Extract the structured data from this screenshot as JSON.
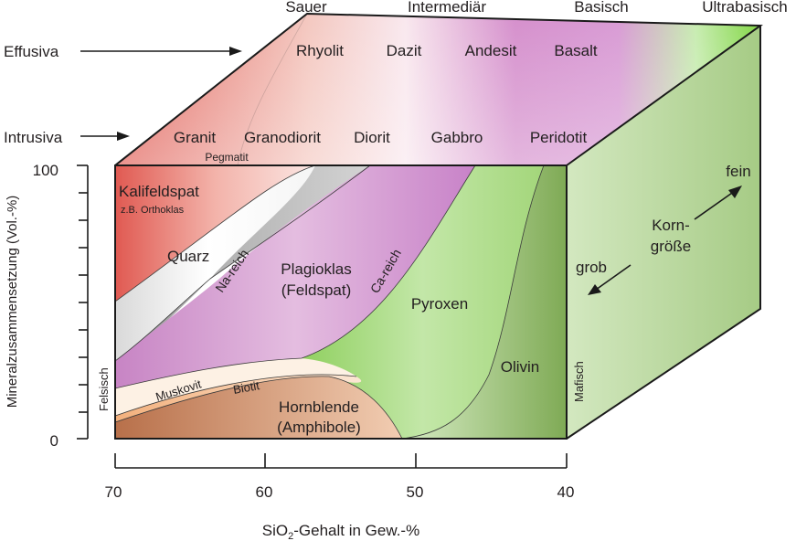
{
  "top_categories": [
    "Sauer",
    "Intermediär",
    "Basisch",
    "Ultrabasisch"
  ],
  "row_labels": {
    "effusive": "Effusiva",
    "intrusive": "Intrusiva"
  },
  "volcanic_rocks": [
    "Rhyolit",
    "Dazit",
    "Andesit",
    "Basalt"
  ],
  "plutonic_rocks": [
    "Granit",
    "Granodiorit",
    "Diorit",
    "Gabbro",
    "Peridotit"
  ],
  "pegmatite": "Pegmatit",
  "minerals": {
    "kalifeldspat": "Kalifeldspat",
    "kalifeldspat_note": "z.B. Orthoklas",
    "quarz": "Quarz",
    "na_reich": "Na-reich",
    "ca_reich": "Ca-reich",
    "plagioklas_1": "Plagioklas",
    "plagioklas_2": "(Feldspat)",
    "pyroxen": "Pyroxen",
    "olivin": "Olivin",
    "muskovit": "Muskovit",
    "biotit": "Biotit",
    "hornblende_1": "Hornblende",
    "hornblende_2": "(Amphibole)"
  },
  "side_labels": {
    "felsic": "Felsisch",
    "mafic": "Mafisch"
  },
  "grain_size": {
    "title_1": "Korn-",
    "title_2": "größe",
    "fine": "fein",
    "coarse": "grob"
  },
  "y_axis": {
    "label": "Mineralzusammensetzung (Vol.-%)",
    "tick_max": "100",
    "tick_min": "0"
  },
  "x_axis": {
    "ticks": [
      "70",
      "60",
      "50",
      "40"
    ],
    "label_prefix": "SiO",
    "label_sub": "2",
    "label_suffix": "-Gehalt in Gew.-%"
  },
  "colors": {
    "red": "#e05a52",
    "pink": "#d99ad0",
    "purple": "#c87ec8",
    "green": "#8ccf5a",
    "olive": "#7faa55",
    "grey": "#b8b8b8",
    "brown": "#b8704a",
    "peach": "#f3c7a3"
  }
}
